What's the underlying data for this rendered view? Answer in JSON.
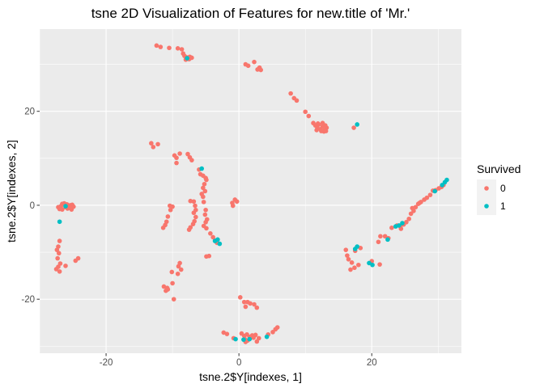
{
  "chart_data": {
    "type": "scatter",
    "title": "tsne 2D Visualization of Features for new.title of 'Mr.'",
    "xlabel": "tsne.2$Y[indexes, 1]",
    "ylabel": "tsne.2$Y[indexes, 2]",
    "xlim": [
      -30,
      33.5
    ],
    "ylim": [
      -31.5,
      37.5
    ],
    "x_ticks": [
      -20,
      0,
      20
    ],
    "y_ticks": [
      -20,
      0,
      20
    ],
    "grid": true,
    "legend": {
      "title": "Survived",
      "position": "right",
      "entries": [
        {
          "label": "0",
          "color": "#F8766D"
        },
        {
          "label": "1",
          "color": "#00BFC4"
        }
      ]
    },
    "series": [
      {
        "name": "0",
        "color": "#F8766D",
        "points": [
          [
            -12.4,
            34
          ],
          [
            -11.8,
            33.7
          ],
          [
            -10.5,
            33.5
          ],
          [
            -9.2,
            33.4
          ],
          [
            -8.6,
            33.2
          ],
          [
            -8.4,
            32.3
          ],
          [
            -8.2,
            31.8
          ],
          [
            -7.9,
            31.5
          ],
          [
            -7.4,
            31.6
          ],
          [
            -7.1,
            31.4
          ],
          [
            -8.0,
            31.0
          ],
          [
            -7.5,
            31.1
          ],
          [
            1.0,
            30.0
          ],
          [
            1.4,
            29.7
          ],
          [
            2.3,
            30.5
          ],
          [
            3.1,
            29.3
          ],
          [
            3.3,
            28.8
          ],
          [
            2.8,
            28.9
          ],
          [
            7.8,
            23.8
          ],
          [
            8.3,
            22.8
          ],
          [
            8.7,
            22.3
          ],
          [
            10.0,
            19.9
          ],
          [
            10.5,
            19.0
          ],
          [
            11.2,
            17.5
          ],
          [
            11.5,
            17.0
          ],
          [
            11.8,
            16.5
          ],
          [
            12.0,
            17.2
          ],
          [
            12.3,
            16.2
          ],
          [
            12.6,
            16.8
          ],
          [
            12.9,
            16.0
          ],
          [
            13.0,
            17.0
          ],
          [
            13.2,
            16.5
          ],
          [
            12.4,
            15.8
          ],
          [
            11.7,
            16.0
          ],
          [
            12.8,
            15.7
          ],
          [
            13.1,
            15.8
          ],
          [
            11.9,
            17.4
          ],
          [
            12.6,
            17.5
          ],
          [
            17.3,
            16.5
          ],
          [
            -13.2,
            13.2
          ],
          [
            -12.9,
            12.4
          ],
          [
            -12.2,
            13.0
          ],
          [
            -9.7,
            10.6
          ],
          [
            -9.4,
            10.1
          ],
          [
            -8.9,
            11.0
          ],
          [
            -7.7,
            10.9
          ],
          [
            -7.4,
            10.2
          ],
          [
            -7.1,
            9.6
          ],
          [
            -9.4,
            9.0
          ],
          [
            -6.0,
            7.6
          ],
          [
            -5.8,
            6.6
          ],
          [
            -5.4,
            6.3
          ],
          [
            -5.0,
            5.8
          ],
          [
            -4.9,
            5.4
          ],
          [
            -5.2,
            4.5
          ],
          [
            -5.4,
            3.7
          ],
          [
            -5.1,
            3.0
          ],
          [
            -5.6,
            2.4
          ],
          [
            -5.4,
            1.8
          ],
          [
            -27.2,
            -0.4
          ],
          [
            -26.8,
            -0.2
          ],
          [
            -26.6,
            0.3
          ],
          [
            -26.3,
            0.4
          ],
          [
            -25.9,
            0.2
          ],
          [
            -25.6,
            -0.1
          ],
          [
            -25.4,
            0.0
          ],
          [
            -25.1,
            0.1
          ],
          [
            -24.9,
            -0.3
          ],
          [
            -25.8,
            -0.7
          ],
          [
            -26.6,
            -0.9
          ],
          [
            -27.0,
            -0.8
          ],
          [
            -25.2,
            -0.9
          ],
          [
            -26.1,
            -0.4
          ],
          [
            -25.5,
            -0.5
          ],
          [
            -7.3,
            0.9
          ],
          [
            -6.8,
            0.8
          ],
          [
            -6.6,
            -0.1
          ],
          [
            -6.5,
            -1.0
          ],
          [
            -6.8,
            -1.6
          ],
          [
            -6.5,
            -2.5
          ],
          [
            -6.7,
            -3.4
          ],
          [
            -6.9,
            -4.0
          ],
          [
            -7.3,
            -4.7
          ],
          [
            -7.5,
            -5.2
          ],
          [
            -5.3,
            0.7
          ],
          [
            -5.0,
            -1.0
          ],
          [
            -5.1,
            -2.0
          ],
          [
            -4.8,
            -3.0
          ],
          [
            -5.0,
            -3.6
          ],
          [
            -5.3,
            -4.4
          ],
          [
            -4.9,
            -4.9
          ],
          [
            -10.4,
            -0.1
          ],
          [
            -10.0,
            -0.3
          ],
          [
            -10.3,
            -1.0
          ],
          [
            -10.7,
            -2.4
          ],
          [
            -10.9,
            -3.5
          ],
          [
            -11.1,
            -4.2
          ],
          [
            -11.4,
            -4.8
          ],
          [
            -1.0,
            0.5
          ],
          [
            -0.6,
            1.2
          ],
          [
            -0.3,
            0.8
          ],
          [
            -0.9,
            -0.1
          ],
          [
            -4.3,
            -6.0
          ],
          [
            -3.9,
            -6.8
          ],
          [
            -3.6,
            -7.5
          ],
          [
            -3.3,
            -8.0
          ],
          [
            -4.9,
            -10.9
          ],
          [
            -4.5,
            -10.8
          ],
          [
            -27.0,
            -7.6
          ],
          [
            -27.2,
            -8.8
          ],
          [
            -27.4,
            -9.5
          ],
          [
            -27.1,
            -10.2
          ],
          [
            -27.3,
            -11.3
          ],
          [
            -26.9,
            -12.4
          ],
          [
            -27.2,
            -13.1
          ],
          [
            -27.5,
            -13.6
          ],
          [
            -27.0,
            -14.1
          ],
          [
            -26.1,
            -12.9
          ],
          [
            -24.2,
            -11.3
          ],
          [
            -24.6,
            -11.8
          ],
          [
            -8.9,
            -12.3
          ],
          [
            -9.1,
            -13.0
          ],
          [
            -8.7,
            -13.7
          ],
          [
            -9.2,
            -14.6
          ],
          [
            -10.1,
            -14.2
          ],
          [
            -10.0,
            -16.6
          ],
          [
            -10.8,
            -17.6
          ],
          [
            -11.3,
            -17.3
          ],
          [
            -11.0,
            -18.2
          ],
          [
            -10.7,
            -17.9
          ],
          [
            -9.8,
            -20.0
          ],
          [
            0.2,
            -19.6
          ],
          [
            0.8,
            -20.6
          ],
          [
            1.3,
            -20.6
          ],
          [
            1.7,
            -20.9
          ],
          [
            2.3,
            -21.1
          ],
          [
            2.7,
            -21.8
          ],
          [
            1.0,
            -21.6
          ],
          [
            -2.3,
            -27.1
          ],
          [
            -1.8,
            -27.4
          ],
          [
            0.4,
            -27.3
          ],
          [
            0.8,
            -27.8
          ],
          [
            1.2,
            -27.5
          ],
          [
            1.6,
            -28.0
          ],
          [
            2.0,
            -27.7
          ],
          [
            2.5,
            -27.6
          ],
          [
            0.9,
            -28.5
          ],
          [
            1.3,
            -28.8
          ],
          [
            1.7,
            -28.3
          ],
          [
            2.2,
            -28.2
          ],
          [
            3.0,
            -28.3
          ],
          [
            1.0,
            -29.1
          ],
          [
            2.7,
            -29.0
          ],
          [
            4.4,
            -27.5
          ],
          [
            5.1,
            -27.0
          ],
          [
            5.5,
            -26.4
          ],
          [
            5.8,
            -26.0
          ],
          [
            -0.8,
            -28.3
          ],
          [
            16.1,
            -9.5
          ],
          [
            16.3,
            -10.7
          ],
          [
            16.5,
            -11.5
          ],
          [
            17.0,
            -12.2
          ],
          [
            16.8,
            -13.7
          ],
          [
            17.4,
            -13.3
          ],
          [
            18.0,
            -12.7
          ],
          [
            17.5,
            -9.7
          ],
          [
            18.3,
            -9.1
          ],
          [
            21.3,
            -6.6
          ],
          [
            22.0,
            -6.6
          ],
          [
            22.5,
            -7.0
          ],
          [
            21.0,
            -7.8
          ],
          [
            20.0,
            -11.9
          ],
          [
            21.2,
            -12.6
          ],
          [
            23.8,
            -4.3
          ],
          [
            24.3,
            -4.5
          ],
          [
            24.8,
            -4.1
          ],
          [
            25.2,
            -3.6
          ],
          [
            25.6,
            -2.9
          ],
          [
            25.9,
            -1.8
          ],
          [
            26.3,
            -1.2
          ],
          [
            26.6,
            -0.4
          ],
          [
            27.0,
            0.3
          ],
          [
            27.4,
            0.7
          ],
          [
            27.9,
            1.2
          ],
          [
            28.3,
            1.6
          ],
          [
            28.8,
            2.2
          ],
          [
            29.2,
            3.1
          ],
          [
            29.6,
            3.2
          ],
          [
            30.1,
            3.6
          ],
          [
            30.5,
            3.9
          ],
          [
            30.8,
            4.3
          ],
          [
            26.1,
            -0.6
          ],
          [
            27.2,
            0.5
          ],
          [
            24.4,
            -5.0
          ],
          [
            23.0,
            -4.8
          ]
        ]
      },
      {
        "name": "1",
        "color": "#00BFC4",
        "points": [
          [
            -7.8,
            31.3
          ],
          [
            17.8,
            17.2
          ],
          [
            -5.6,
            7.8
          ],
          [
            -27.0,
            -3.5
          ],
          [
            -26.1,
            -0.2
          ],
          [
            -3.2,
            -7.3
          ],
          [
            -3.6,
            -7.6
          ],
          [
            -2.9,
            -8.2
          ],
          [
            17.8,
            -8.8
          ],
          [
            17.5,
            -9.3
          ],
          [
            19.6,
            -12.3
          ],
          [
            20.1,
            -12.7
          ],
          [
            22.4,
            -7.3
          ],
          [
            23.6,
            -4.5
          ],
          [
            24.1,
            -4.3
          ],
          [
            24.6,
            -3.8
          ],
          [
            29.5,
            3.0
          ],
          [
            30.6,
            4.3
          ],
          [
            31.0,
            4.9
          ],
          [
            31.3,
            5.4
          ],
          [
            0.7,
            -28.6
          ],
          [
            1.6,
            -28.5
          ],
          [
            4.2,
            -28.0
          ],
          [
            -0.5,
            -28.5
          ]
        ]
      }
    ]
  }
}
